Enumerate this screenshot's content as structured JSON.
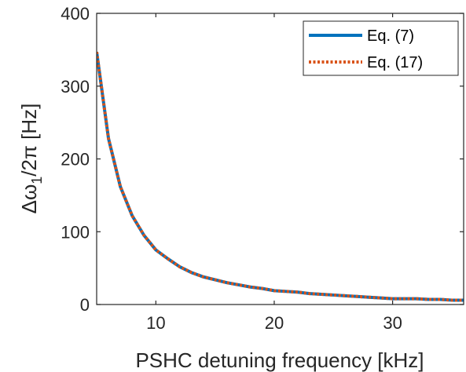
{
  "chart_data": {
    "type": "line",
    "title": "",
    "xlabel": "PSHC detuning frequency [kHz]",
    "ylabel": "Δω₁/2π [Hz]",
    "ylabel_main": "Δω",
    "ylabel_sub": "1",
    "ylabel_rest": "/2π [Hz]",
    "xlim": [
      5,
      36
    ],
    "ylim": [
      0,
      400
    ],
    "xticks": [
      10,
      20,
      30
    ],
    "yticks": [
      0,
      100,
      200,
      300,
      400
    ],
    "xtick_labels": [
      "10",
      "20",
      "30"
    ],
    "ytick_labels": [
      "0",
      "100",
      "200",
      "300",
      "400"
    ],
    "grid": false,
    "legend_position": "top-right",
    "x": [
      5,
      6,
      7,
      8,
      9,
      10,
      11,
      12,
      13,
      14,
      15,
      16,
      17,
      18,
      19,
      20,
      21,
      22,
      23,
      24,
      25,
      26,
      27,
      28,
      29,
      30,
      31,
      32,
      33,
      34,
      35,
      36
    ],
    "series": [
      {
        "name": "Eq. (7)",
        "color": "#0072BD",
        "style": "solid",
        "values": [
          347,
          228,
          162,
          122,
          95,
          75,
          63,
          52,
          44,
          38,
          34,
          30,
          27,
          24,
          22,
          19,
          18,
          17,
          15,
          14,
          13,
          12,
          11,
          10,
          9,
          8,
          8,
          8,
          7,
          7,
          6,
          6
        ]
      },
      {
        "name": "Eq. (17)",
        "color": "#D95319",
        "style": "dotted",
        "values": [
          347,
          228,
          162,
          122,
          95,
          75,
          63,
          52,
          44,
          38,
          34,
          30,
          27,
          24,
          22,
          19,
          18,
          17,
          15,
          14,
          13,
          12,
          11,
          10,
          9,
          8,
          8,
          8,
          7,
          7,
          6,
          6
        ]
      }
    ]
  }
}
